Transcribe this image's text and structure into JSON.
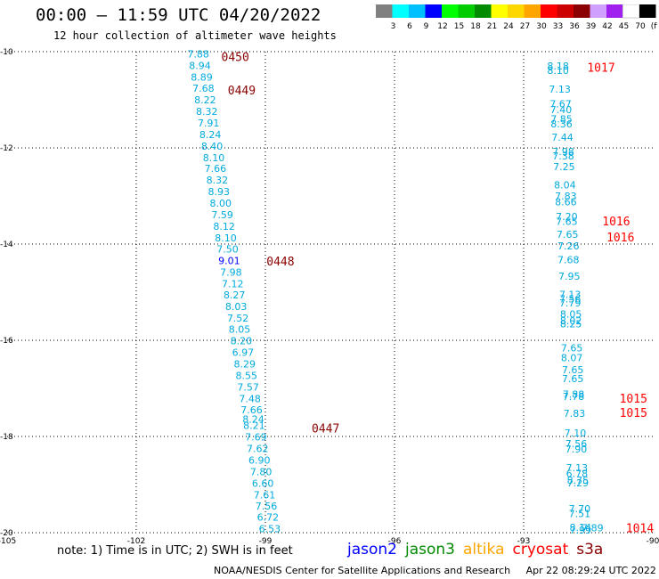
{
  "header": {
    "title": "00:00 – 11:59 UTC 04/20/2022",
    "subtitle": "12 hour collection of altimeter wave heights"
  },
  "colorbar": {
    "levels": [
      "3",
      "6",
      "9",
      "12",
      "15",
      "18",
      "21",
      "24",
      "27",
      "30",
      "33",
      "36",
      "39",
      "42",
      "45",
      "70",
      "(ft)"
    ],
    "colors": [
      "#808080",
      "#00ffff",
      "#00bfff",
      "#0000ff",
      "#00ff00",
      "#00cd00",
      "#008b00",
      "#ffff00",
      "#ffd700",
      "#ffa500",
      "#ff0000",
      "#cd0000",
      "#8b0000",
      "#d0a0ff",
      "#a020f0",
      "#ffffff",
      "#000000"
    ]
  },
  "chart_data": {
    "type": "scatter",
    "xlim": [
      -105,
      -90
    ],
    "ylim": [
      -20,
      -10
    ],
    "x_ticks": [
      "-105",
      "-102",
      "-99",
      "-96",
      "-93",
      "-90"
    ],
    "y_ticks": [
      "-10",
      "-12",
      "-14",
      "-16",
      "-18",
      "-20"
    ],
    "x_tick_values": [
      -105,
      -102,
      -99,
      -96,
      -93,
      -90
    ],
    "y_tick_values": [
      -10,
      -12,
      -14,
      -16,
      -18,
      -20
    ],
    "grid": true,
    "point_color": "#00aadd",
    "tracks": [
      {
        "name": "jason2",
        "points": [
          {
            "x": -100.56,
            "y": -10.05,
            "v": "7.88"
          },
          {
            "x": -100.52,
            "y": -10.29,
            "v": "8.94"
          },
          {
            "x": -100.48,
            "y": -10.53,
            "v": "8.89"
          },
          {
            "x": -100.44,
            "y": -10.76,
            "v": "7.68"
          },
          {
            "x": -100.4,
            "y": -11.0,
            "v": "8.22"
          },
          {
            "x": -100.36,
            "y": -11.24,
            "v": "8.32"
          },
          {
            "x": -100.32,
            "y": -11.48,
            "v": "7.91"
          },
          {
            "x": -100.28,
            "y": -11.72,
            "v": "8.24"
          },
          {
            "x": -100.24,
            "y": -11.96,
            "v": "8.40"
          },
          {
            "x": -100.2,
            "y": -12.2,
            "v": "8.10"
          },
          {
            "x": -100.16,
            "y": -12.43,
            "v": "7.66"
          },
          {
            "x": -100.12,
            "y": -12.67,
            "v": "8.32"
          },
          {
            "x": -100.08,
            "y": -12.91,
            "v": "8.93"
          },
          {
            "x": -100.04,
            "y": -13.15,
            "v": "8.00"
          },
          {
            "x": -100.0,
            "y": -13.39,
            "v": "7.59"
          },
          {
            "x": -99.96,
            "y": -13.63,
            "v": "8.12"
          },
          {
            "x": -99.92,
            "y": -13.87,
            "v": "8.10"
          },
          {
            "x": -99.88,
            "y": -14.1,
            "v": "7.50"
          },
          {
            "x": -99.84,
            "y": -14.34,
            "v": "9.01",
            "color": "#0000ff"
          },
          {
            "x": -99.8,
            "y": -14.58,
            "v": "7.98"
          },
          {
            "x": -99.76,
            "y": -14.82,
            "v": "7.12"
          },
          {
            "x": -99.72,
            "y": -15.06,
            "v": "8.27"
          },
          {
            "x": -99.68,
            "y": -15.3,
            "v": "8.03"
          },
          {
            "x": -99.64,
            "y": -15.54,
            "v": "7.52"
          },
          {
            "x": -99.6,
            "y": -15.77,
            "v": "8.05"
          },
          {
            "x": -99.56,
            "y": -16.01,
            "v": "8.20"
          },
          {
            "x": -99.52,
            "y": -16.25,
            "v": "6.97"
          },
          {
            "x": -99.48,
            "y": -16.49,
            "v": "8.29"
          },
          {
            "x": -99.44,
            "y": -16.73,
            "v": "8.55"
          },
          {
            "x": -99.4,
            "y": -16.97,
            "v": "7.57"
          },
          {
            "x": -99.36,
            "y": -17.21,
            "v": "7.48"
          },
          {
            "x": -99.32,
            "y": -17.44,
            "v": "7.66"
          },
          {
            "x": -99.28,
            "y": -17.64,
            "v": "8.24"
          },
          {
            "x": -99.26,
            "y": -17.77,
            "v": "8.21"
          },
          {
            "x": -99.22,
            "y": -18.01,
            "v": "7.69"
          },
          {
            "x": -99.18,
            "y": -18.25,
            "v": "7.62"
          },
          {
            "x": -99.14,
            "y": -18.49,
            "v": "6.90"
          },
          {
            "x": -99.1,
            "y": -18.73,
            "v": "7.80"
          },
          {
            "x": -99.06,
            "y": -18.97,
            "v": "6.60"
          },
          {
            "x": -99.02,
            "y": -19.21,
            "v": "7.61"
          },
          {
            "x": -98.98,
            "y": -19.44,
            "v": "7.56"
          },
          {
            "x": -98.94,
            "y": -19.68,
            "v": "6.72"
          },
          {
            "x": -98.9,
            "y": -19.92,
            "v": "6.53"
          }
        ]
      },
      {
        "name": "cryosat",
        "points": [
          {
            "x": -92.2,
            "y": -10.3,
            "v": "8.18"
          },
          {
            "x": -92.2,
            "y": -10.39,
            "v": "8.10"
          },
          {
            "x": -92.16,
            "y": -10.78,
            "v": "7.13"
          },
          {
            "x": -92.14,
            "y": -11.08,
            "v": "7.67"
          },
          {
            "x": -92.13,
            "y": -11.2,
            "v": "7.40"
          },
          {
            "x": -92.12,
            "y": -11.4,
            "v": "7.85"
          },
          {
            "x": -92.12,
            "y": -11.5,
            "v": "8.36"
          },
          {
            "x": -92.1,
            "y": -11.78,
            "v": "7.44"
          },
          {
            "x": -92.08,
            "y": -12.07,
            "v": "7.98"
          },
          {
            "x": -92.08,
            "y": -12.17,
            "v": "7.38"
          },
          {
            "x": -92.06,
            "y": -12.39,
            "v": "7.25"
          },
          {
            "x": -92.04,
            "y": -12.77,
            "v": "8.04"
          },
          {
            "x": -92.02,
            "y": -13.0,
            "v": "7.83"
          },
          {
            "x": -92.02,
            "y": -13.12,
            "v": "8.66"
          },
          {
            "x": -92.0,
            "y": -13.43,
            "v": "7.20"
          },
          {
            "x": -92.0,
            "y": -13.53,
            "v": "7.65"
          },
          {
            "x": -91.98,
            "y": -13.8,
            "v": "7.65"
          },
          {
            "x": -91.96,
            "y": -14.04,
            "v": "7.26"
          },
          {
            "x": -91.96,
            "y": -14.32,
            "v": "7.68"
          },
          {
            "x": -91.94,
            "y": -14.67,
            "v": "7.95"
          },
          {
            "x": -91.92,
            "y": -15.05,
            "v": "7.13"
          },
          {
            "x": -91.92,
            "y": -15.14,
            "v": "7.56"
          },
          {
            "x": -91.92,
            "y": -15.22,
            "v": "7.79"
          },
          {
            "x": -91.9,
            "y": -15.45,
            "v": "8.05"
          },
          {
            "x": -91.9,
            "y": -15.59,
            "v": "8.02"
          },
          {
            "x": -91.9,
            "y": -15.66,
            "v": "8.25"
          },
          {
            "x": -91.88,
            "y": -16.16,
            "v": "7.65"
          },
          {
            "x": -91.88,
            "y": -16.36,
            "v": "8.07"
          },
          {
            "x": -91.86,
            "y": -16.61,
            "v": "7.65"
          },
          {
            "x": -91.86,
            "y": -16.8,
            "v": "7.65"
          },
          {
            "x": -91.84,
            "y": -17.12,
            "v": "7.88"
          },
          {
            "x": -91.84,
            "y": -17.17,
            "v": "7.78"
          },
          {
            "x": -91.82,
            "y": -17.52,
            "v": "7.83"
          },
          {
            "x": -91.8,
            "y": -17.93,
            "v": "7.10"
          },
          {
            "x": -91.78,
            "y": -18.15,
            "v": "7.56"
          },
          {
            "x": -91.78,
            "y": -18.26,
            "v": "7.90"
          },
          {
            "x": -91.76,
            "y": -18.65,
            "v": "7.13"
          },
          {
            "x": -91.76,
            "y": -18.77,
            "v": "6.78"
          },
          {
            "x": -91.74,
            "y": -18.91,
            "v": "8.75"
          },
          {
            "x": -91.74,
            "y": -18.96,
            "v": "7.29"
          },
          {
            "x": -91.7,
            "y": -19.5,
            "v": "7.70"
          },
          {
            "x": -91.7,
            "y": -19.6,
            "v": "7.51"
          },
          {
            "x": -91.68,
            "y": -19.89,
            "v": "8.14"
          },
          {
            "x": -91.68,
            "y": -19.94,
            "v": "7.99"
          },
          {
            "x": -91.4,
            "y": -19.9,
            "v": "7.89"
          }
        ]
      }
    ],
    "time_labels": [
      {
        "x": -99.7,
        "y": -10.1,
        "text": "0450",
        "color": "#8b0000"
      },
      {
        "x": -99.55,
        "y": -10.8,
        "text": "0449",
        "color": "#8b0000"
      },
      {
        "x": -98.65,
        "y": -14.35,
        "text": "0448",
        "color": "#8b0000"
      },
      {
        "x": -97.6,
        "y": -17.82,
        "text": "0447",
        "color": "#8b0000"
      },
      {
        "x": -91.2,
        "y": -10.32,
        "text": "1017",
        "color": "#ff0000"
      },
      {
        "x": -90.85,
        "y": -13.52,
        "text": "1016",
        "color": "#ff0000"
      },
      {
        "x": -90.75,
        "y": -13.85,
        "text": "1016",
        "color": "#ff0000"
      },
      {
        "x": -90.45,
        "y": -17.2,
        "text": "1015",
        "color": "#ff0000"
      },
      {
        "x": -90.45,
        "y": -17.5,
        "text": "1015",
        "color": "#ff0000"
      },
      {
        "x": -90.3,
        "y": -19.9,
        "text": "1014",
        "color": "#ff0000"
      }
    ]
  },
  "footer": {
    "note": "note:  1) Time is in UTC;  2) SWH is in feet",
    "satellites": [
      {
        "name": "jason2",
        "color": "#0000ff"
      },
      {
        "name": "jason3",
        "color": "#008b00"
      },
      {
        "name": "altika",
        "color": "#ffa500"
      },
      {
        "name": "cryosat",
        "color": "#ff0000"
      },
      {
        "name": "s3a",
        "color": "#8b0000"
      }
    ],
    "credit_org": "NOAA/NESDIS Center for Satellite Applications and Research",
    "credit_time": "Apr 22 08:29:24 UTC 2022"
  }
}
